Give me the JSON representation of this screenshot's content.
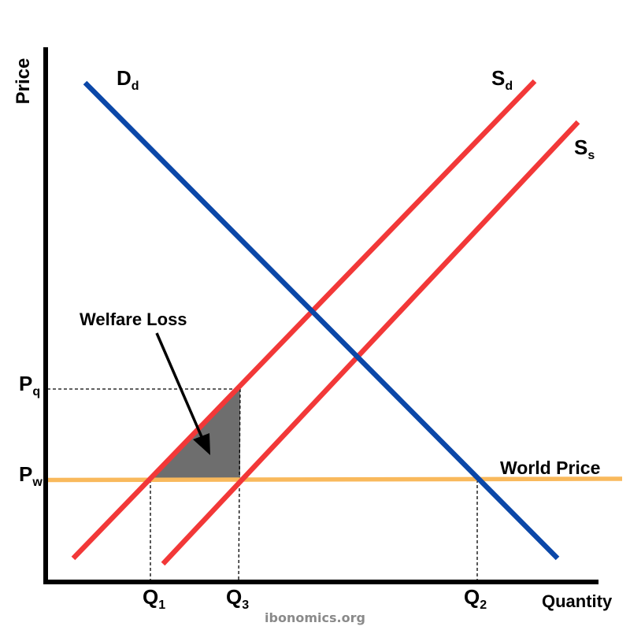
{
  "axes": {
    "y_label": "Price",
    "x_label": "Quantity"
  },
  "curves": {
    "demand": {
      "main": "D",
      "sub": "d",
      "color": "#0b47a8"
    },
    "supply_domestic": {
      "main": "S",
      "sub": "d",
      "color": "#f23838"
    },
    "supply_shifted": {
      "main": "S",
      "sub": "s",
      "color": "#f23838"
    },
    "world_price": {
      "label": "World Price",
      "color": "#f9b95c"
    }
  },
  "price_labels": {
    "pq": {
      "main": "P",
      "sub": "q"
    },
    "pw": {
      "main": "P",
      "sub": "w"
    }
  },
  "quantity_labels": {
    "q1": {
      "main": "Q",
      "sub": "1"
    },
    "q3": {
      "main": "Q",
      "sub": "3"
    },
    "q2": {
      "main": "Q",
      "sub": "2"
    }
  },
  "annotation": {
    "text": "Welfare Loss",
    "fill_color": "#6e6e6e"
  },
  "watermark": "ibonomics.org"
}
